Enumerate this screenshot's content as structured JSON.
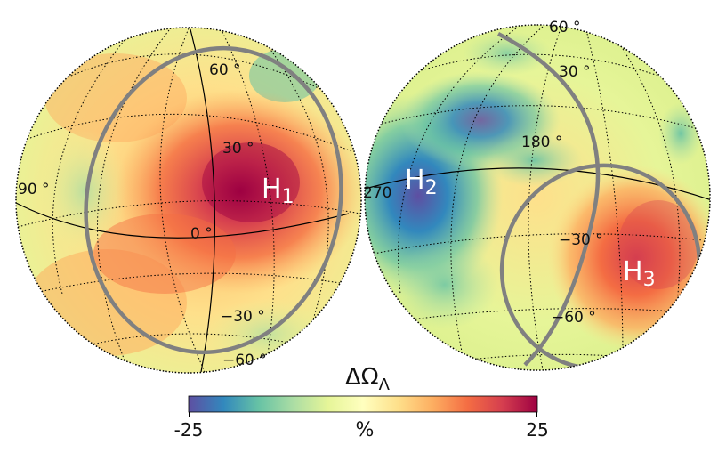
{
  "globes": [
    {
      "id": "left",
      "meridian_labels": [
        "90 °"
      ],
      "parallel_labels": [
        "60 °",
        "30 °",
        "0 °",
        "−30 °",
        "−60 °"
      ],
      "hotspot": {
        "letter": "H",
        "sub": "1"
      }
    },
    {
      "id": "right",
      "meridian_labels": [
        "180 °",
        "270"
      ],
      "parallel_labels": [
        "60 °",
        "30 °",
        "−30 °",
        "−60 °"
      ],
      "hotspot_a": {
        "letter": "H",
        "sub": "2"
      },
      "hotspot_b": {
        "letter": "H",
        "sub": "3"
      }
    }
  ],
  "colorbar": {
    "title_main": "ΔΩ",
    "title_sub": "Λ",
    "min_label": "-25",
    "max_label": "25",
    "unit": "%",
    "min": -25,
    "max": 25,
    "colors": [
      "#5e4fa2",
      "#3288bd",
      "#66c2a5",
      "#abdda4",
      "#e6f598",
      "#ffffbf",
      "#fee08b",
      "#fdae61",
      "#f46d43",
      "#d53e4f",
      "#9e0142"
    ]
  },
  "colors": {
    "ring": "#808080",
    "graticule": "#000000"
  }
}
